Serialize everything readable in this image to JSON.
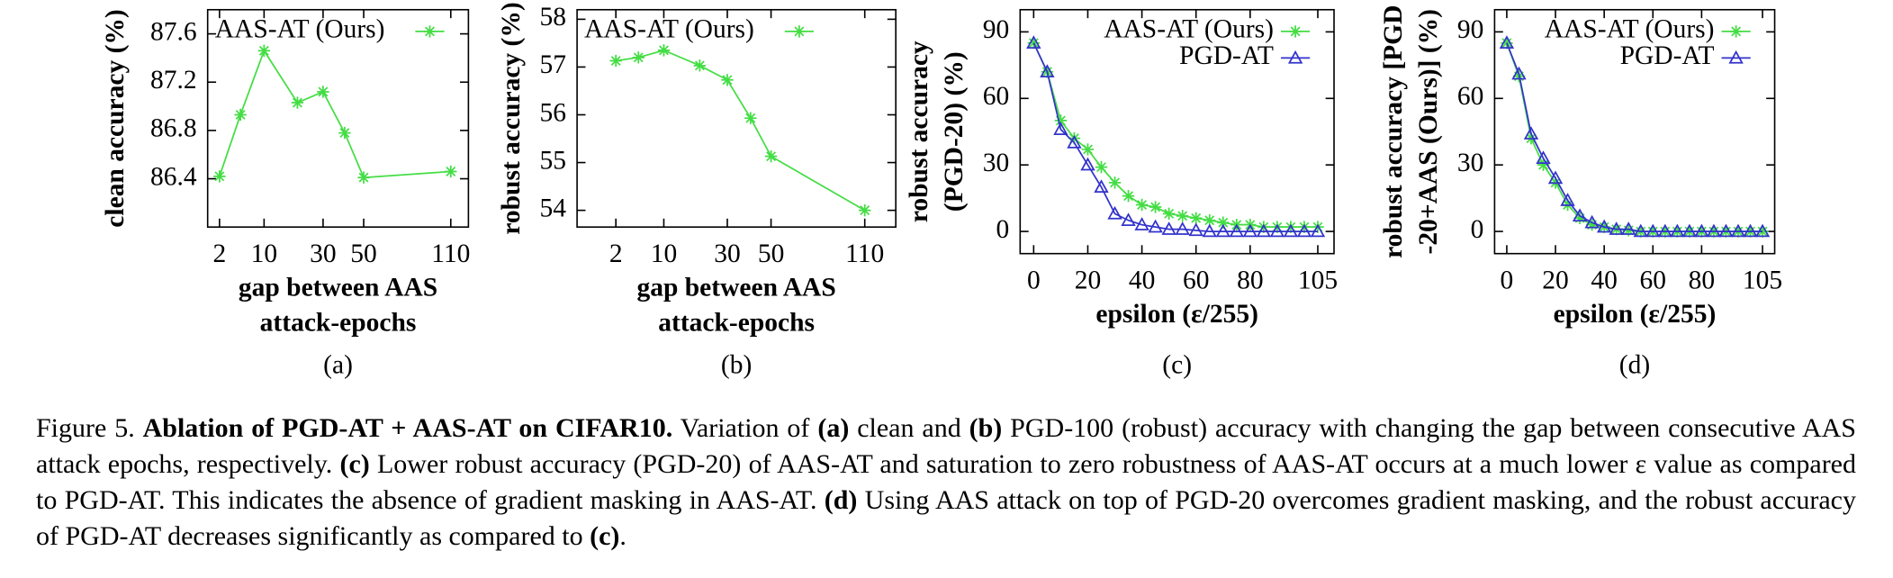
{
  "chart_data": [
    {
      "type": "line",
      "x": [
        2,
        5,
        10,
        20,
        30,
        40,
        50,
        110
      ],
      "xscale": "sqrt",
      "xlim": [
        0.9,
        125
      ],
      "xticks": [
        2,
        10,
        30,
        50,
        110
      ],
      "ylim": [
        86.0,
        87.8
      ],
      "yticks": [
        86.4,
        86.8,
        87.2,
        87.6
      ],
      "xlabel": [
        "gap between AAS",
        "attack-epochs"
      ],
      "ylabel": [
        "clean accuracy (%)"
      ],
      "sublabel": "(a)",
      "legend": "upper left",
      "series": [
        {
          "name": "AAS-AT (Ours)",
          "color": "#44dd44",
          "marker": "star",
          "values": [
            86.42,
            86.93,
            87.46,
            87.03,
            87.12,
            86.78,
            86.41,
            86.46
          ]
        }
      ]
    },
    {
      "type": "line",
      "x": [
        2,
        5,
        10,
        20,
        30,
        40,
        50,
        110
      ],
      "xscale": "sqrt",
      "xlim": [
        0,
        135
      ],
      "xticks": [
        2,
        10,
        30,
        50,
        110
      ],
      "ylim": [
        53.65,
        58.2
      ],
      "yticks": [
        54,
        55,
        56,
        57,
        58
      ],
      "xlabel": [
        "gap between AAS",
        "attack-epochs"
      ],
      "ylabel": [
        "robust accuracy (%)"
      ],
      "sublabel": "(b)",
      "legend": "upper left",
      "series": [
        {
          "name": "AAS-AT (Ours)",
          "color": "#44dd44",
          "marker": "star",
          "values": [
            57.13,
            57.2,
            57.35,
            57.03,
            56.73,
            55.93,
            55.13,
            54.0
          ]
        }
      ]
    },
    {
      "type": "line",
      "x": [
        0,
        5,
        10,
        15,
        20,
        25,
        30,
        35,
        40,
        45,
        50,
        55,
        60,
        65,
        70,
        75,
        80,
        85,
        90,
        95,
        100,
        105
      ],
      "xscale": "linear",
      "xlim": [
        -5,
        111
      ],
      "xticks": [
        0,
        20,
        40,
        60,
        80,
        105
      ],
      "ylim": [
        -10,
        100
      ],
      "yticks": [
        0,
        30,
        60,
        90
      ],
      "xlabel": [
        "epsilon (ε/255)"
      ],
      "ylabel": [
        "robust accuracy",
        "(PGD-20) (%)"
      ],
      "sublabel": "(c)",
      "legend": "upper right",
      "series": [
        {
          "name": "AAS-AT (Ours)",
          "color": "#44dd44",
          "marker": "star",
          "values": [
            85,
            72,
            50,
            42,
            37,
            29,
            22,
            16,
            12,
            11,
            8,
            7,
            6,
            5,
            4,
            3,
            3,
            2,
            2,
            2,
            2,
            2
          ]
        },
        {
          "name": "PGD-AT",
          "color": "#3333cc",
          "marker": "triangle",
          "values": [
            85,
            72,
            46,
            40,
            30,
            20,
            8,
            5,
            3,
            2,
            1,
            1,
            0.5,
            0,
            0,
            0,
            0,
            0,
            0,
            0,
            0,
            0
          ]
        }
      ]
    },
    {
      "type": "line",
      "x": [
        0,
        5,
        10,
        15,
        20,
        25,
        30,
        35,
        40,
        45,
        50,
        55,
        60,
        65,
        70,
        75,
        80,
        85,
        90,
        95,
        100,
        105
      ],
      "xscale": "linear",
      "xlim": [
        -5,
        110
      ],
      "xticks": [
        0,
        20,
        40,
        60,
        80,
        105
      ],
      "ylim": [
        -10,
        100
      ],
      "yticks": [
        0,
        30,
        60,
        90
      ],
      "xlabel": [
        "epsilon (ε/255)"
      ],
      "ylabel": [
        "robust accuracy [PGD",
        "-20+AAS (Ours)] (%)"
      ],
      "sublabel": "(d)",
      "legend": "upper right",
      "series": [
        {
          "name": "AAS-AT (Ours)",
          "color": "#44dd44",
          "marker": "star",
          "values": [
            85,
            70,
            42,
            30,
            22,
            12,
            6,
            3,
            2,
            1,
            0.5,
            0,
            0,
            0,
            0,
            0,
            0,
            0,
            0,
            0,
            0,
            0
          ]
        },
        {
          "name": "PGD-AT",
          "color": "#3333cc",
          "marker": "triangle",
          "values": [
            85,
            71,
            44,
            33,
            24,
            14,
            7,
            4,
            2,
            1,
            1,
            0,
            0,
            0,
            0,
            0,
            0,
            0,
            0,
            0,
            0,
            0
          ]
        }
      ]
    }
  ],
  "caption": {
    "parts": [
      {
        "text": "Figure 5. ",
        "bold": false
      },
      {
        "text": "Ablation of PGD-AT + AAS-AT on CIFAR10.",
        "bold": true
      },
      {
        "text": " Variation of ",
        "bold": false
      },
      {
        "text": "(a)",
        "bold": true
      },
      {
        "text": " clean and ",
        "bold": false
      },
      {
        "text": "(b)",
        "bold": true
      },
      {
        "text": " PGD-100 (robust) accuracy with changing the gap between consecutive AAS attack epochs, respectively. ",
        "bold": false
      },
      {
        "text": "(c)",
        "bold": true
      },
      {
        "text": " Lower robust accuracy (PGD-20) of AAS-AT and saturation to zero robustness of AAS-AT occurs at a much lower ε value as compared to PGD-AT. This indicates the absence of gradient masking in AAS-AT. ",
        "bold": false
      },
      {
        "text": "(d)",
        "bold": true
      },
      {
        "text": " Using AAS attack on top of PGD-20 overcomes gradient masking, and the robust accuracy of PGD-AT decreases significantly as compared to ",
        "bold": false
      },
      {
        "text": "(c)",
        "bold": true
      },
      {
        "text": ".",
        "bold": false
      }
    ]
  }
}
